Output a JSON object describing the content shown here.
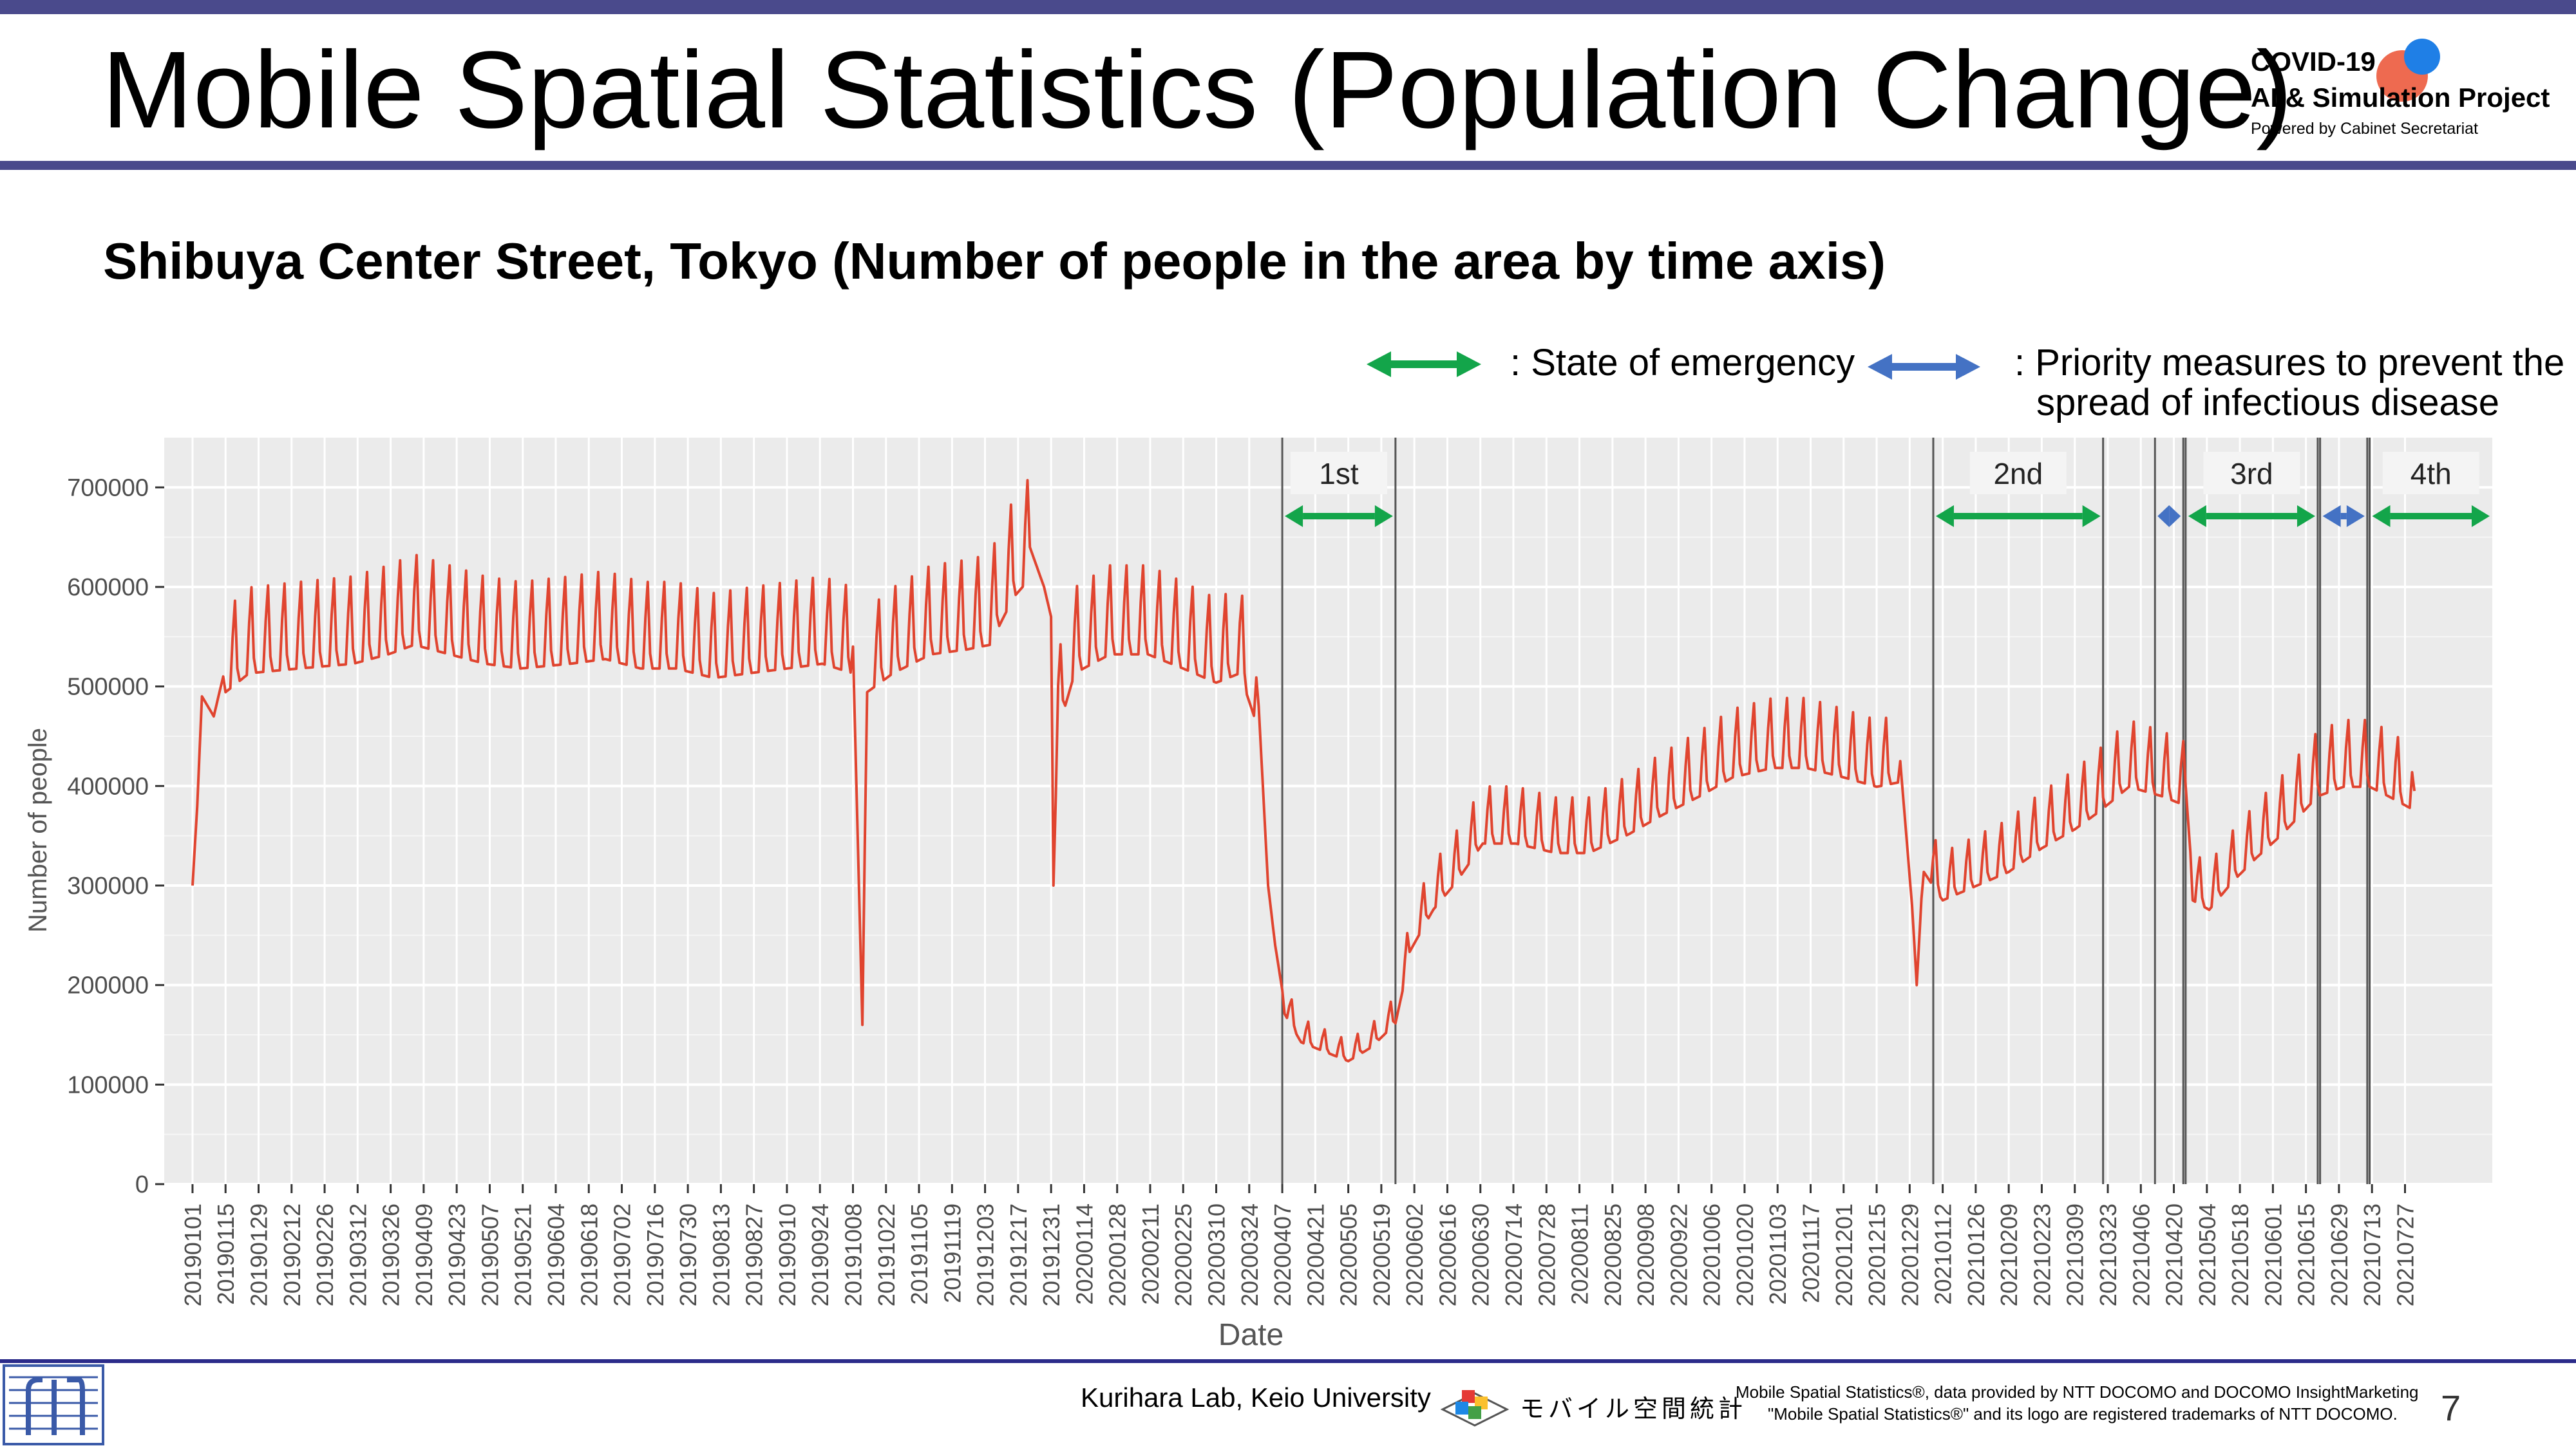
{
  "header": {
    "title": "Mobile Spatial Statistics (Population Change)",
    "logo_line1": "COVID-19",
    "logo_line2": "AI & Simulation Project",
    "logo_line3": "Powered by Cabinet Secretariat"
  },
  "subtitle": "Shibuya Center Street, Tokyo (Number of people in the area by time axis)",
  "legend": {
    "emergency_label": ": State of emergency",
    "priority_label_1": ": Priority measures to prevent the",
    "priority_label_2": "spread of infectious disease",
    "emergency_color": "#13a54a",
    "priority_color": "#4472c4"
  },
  "chart_data": {
    "type": "line",
    "title": "",
    "xlabel": "Date",
    "ylabel": "Number of people",
    "ylim": [
      0,
      750000
    ],
    "yticks": [
      0,
      100000,
      200000,
      300000,
      400000,
      500000,
      600000,
      700000
    ],
    "ytick_labels": [
      "0",
      "100000",
      "200000",
      "300000",
      "400000",
      "500000",
      "600000",
      "700000"
    ],
    "xlim": [
      "2018-12-20",
      "2021-09-02"
    ],
    "xtick_labels": [
      "20190101",
      "20190115",
      "20190129",
      "20190212",
      "20190226",
      "20190312",
      "20190326",
      "20190409",
      "20190423",
      "20190507",
      "20190521",
      "20190604",
      "20190618",
      "20190702",
      "20190716",
      "20190730",
      "20190813",
      "20190827",
      "20190910",
      "20190924",
      "20191008",
      "20191022",
      "20191105",
      "20191119",
      "20191203",
      "20191217",
      "20191231",
      "20200114",
      "20200128",
      "20200211",
      "20200225",
      "20200310",
      "20200324",
      "20200407",
      "20200421",
      "20200505",
      "20200519",
      "20200602",
      "20200616",
      "20200630",
      "20200714",
      "20200728",
      "20200811",
      "20200825",
      "20200908",
      "20200922",
      "20201006",
      "20201020",
      "20201103",
      "20201117",
      "20201201",
      "20201215",
      "20201229",
      "20210112",
      "20210126",
      "20210209",
      "20210223",
      "20210309",
      "20210323",
      "20210406",
      "20210420",
      "20210504",
      "20210518",
      "20210601",
      "20210615",
      "20210629",
      "20210713",
      "20210727"
    ],
    "grid": true,
    "series_color": "#e0442f",
    "series": [
      {
        "values": [
          [
            "2019-01-01",
            300000
          ],
          [
            "2019-01-03",
            380000
          ],
          [
            "2019-01-05",
            490000
          ],
          [
            "2019-01-10",
            470000
          ],
          [
            "2019-01-15",
            520000
          ],
          [
            "2019-01-25",
            540000
          ],
          [
            "2019-02-15",
            545000
          ],
          [
            "2019-03-10",
            550000
          ],
          [
            "2019-03-25",
            560000
          ],
          [
            "2019-04-05",
            570000
          ],
          [
            "2019-04-20",
            560000
          ],
          [
            "2019-05-05",
            550000
          ],
          [
            "2019-05-20",
            545000
          ],
          [
            "2019-06-10",
            550000
          ],
          [
            "2019-06-25",
            555000
          ],
          [
            "2019-07-10",
            545000
          ],
          [
            "2019-07-25",
            545000
          ],
          [
            "2019-08-10",
            535000
          ],
          [
            "2019-08-25",
            540000
          ],
          [
            "2019-09-10",
            545000
          ],
          [
            "2019-09-25",
            550000
          ],
          [
            "2019-10-08",
            540000
          ],
          [
            "2019-10-12",
            160000
          ],
          [
            "2019-10-14",
            520000
          ],
          [
            "2019-10-25",
            540000
          ],
          [
            "2019-11-10",
            560000
          ],
          [
            "2019-11-25",
            565000
          ],
          [
            "2019-12-05",
            570000
          ],
          [
            "2019-12-15",
            620000
          ],
          [
            "2019-12-22",
            640000
          ],
          [
            "2019-12-28",
            600000
          ],
          [
            "2019-12-31",
            570000
          ],
          [
            "2020-01-01",
            300000
          ],
          [
            "2020-01-03",
            480000
          ],
          [
            "2020-01-10",
            540000
          ],
          [
            "2020-01-25",
            560000
          ],
          [
            "2020-02-10",
            560000
          ],
          [
            "2020-02-25",
            545000
          ],
          [
            "2020-03-10",
            530000
          ],
          [
            "2020-03-20",
            540000
          ],
          [
            "2020-03-28",
            480000
          ],
          [
            "2020-04-01",
            300000
          ],
          [
            "2020-04-04",
            240000
          ],
          [
            "2020-04-08",
            180000
          ],
          [
            "2020-04-15",
            150000
          ],
          [
            "2020-04-25",
            140000
          ],
          [
            "2020-05-05",
            130000
          ],
          [
            "2020-05-15",
            145000
          ],
          [
            "2020-05-25",
            170000
          ],
          [
            "2020-06-01",
            250000
          ],
          [
            "2020-06-10",
            290000
          ],
          [
            "2020-06-20",
            320000
          ],
          [
            "2020-07-01",
            360000
          ],
          [
            "2020-07-15",
            360000
          ],
          [
            "2020-08-01",
            350000
          ],
          [
            "2020-08-15",
            350000
          ],
          [
            "2020-09-01",
            370000
          ],
          [
            "2020-09-15",
            390000
          ],
          [
            "2020-10-01",
            410000
          ],
          [
            "2020-10-15",
            430000
          ],
          [
            "2020-11-01",
            440000
          ],
          [
            "2020-11-15",
            440000
          ],
          [
            "2020-12-01",
            430000
          ],
          [
            "2020-12-15",
            420000
          ],
          [
            "2020-12-25",
            425000
          ],
          [
            "2020-12-30",
            280000
          ],
          [
            "2021-01-01",
            200000
          ],
          [
            "2021-01-04",
            330000
          ],
          [
            "2021-01-12",
            300000
          ],
          [
            "2021-01-26",
            315000
          ],
          [
            "2021-02-09",
            330000
          ],
          [
            "2021-02-23",
            355000
          ],
          [
            "2021-03-09",
            375000
          ],
          [
            "2021-03-20",
            395000
          ],
          [
            "2021-04-01",
            420000
          ],
          [
            "2021-04-15",
            410000
          ],
          [
            "2021-04-25",
            400000
          ],
          [
            "2021-04-28",
            300000
          ],
          [
            "2021-05-05",
            290000
          ],
          [
            "2021-05-15",
            320000
          ],
          [
            "2021-05-25",
            345000
          ],
          [
            "2021-06-05",
            370000
          ],
          [
            "2021-06-20",
            410000
          ],
          [
            "2021-07-01",
            420000
          ],
          [
            "2021-07-12",
            420000
          ],
          [
            "2021-07-20",
            410000
          ],
          [
            "2021-07-31",
            395000
          ]
        ]
      }
    ],
    "periods": [
      {
        "label": "1st",
        "type": "emergency",
        "start": "2020-04-07",
        "end": "2020-05-25"
      },
      {
        "label": "2nd",
        "type": "emergency",
        "start": "2021-01-08",
        "end": "2021-03-21"
      },
      {
        "label": "",
        "type": "priority",
        "start": "2021-04-12",
        "end": "2021-04-24"
      },
      {
        "label": "3rd",
        "type": "emergency",
        "start": "2021-04-25",
        "end": "2021-06-20"
      },
      {
        "label": "",
        "type": "priority",
        "start": "2021-06-21",
        "end": "2021-07-11"
      },
      {
        "label": "4th",
        "type": "emergency",
        "start": "2021-07-12",
        "end": "2021-09-02"
      }
    ]
  },
  "footer": {
    "lab": "Kurihara Lab, Keio University",
    "docomo_logo_text": "モバイル空間統計",
    "note_line1": "Mobile Spatial Statistics®, data provided by NTT DOCOMO and DOCOMO InsightMarketing",
    "note_line2": "\"Mobile Spatial Statistics®\" and its logo are registered trademarks of NTT DOCOMO.",
    "page_number": "7"
  }
}
